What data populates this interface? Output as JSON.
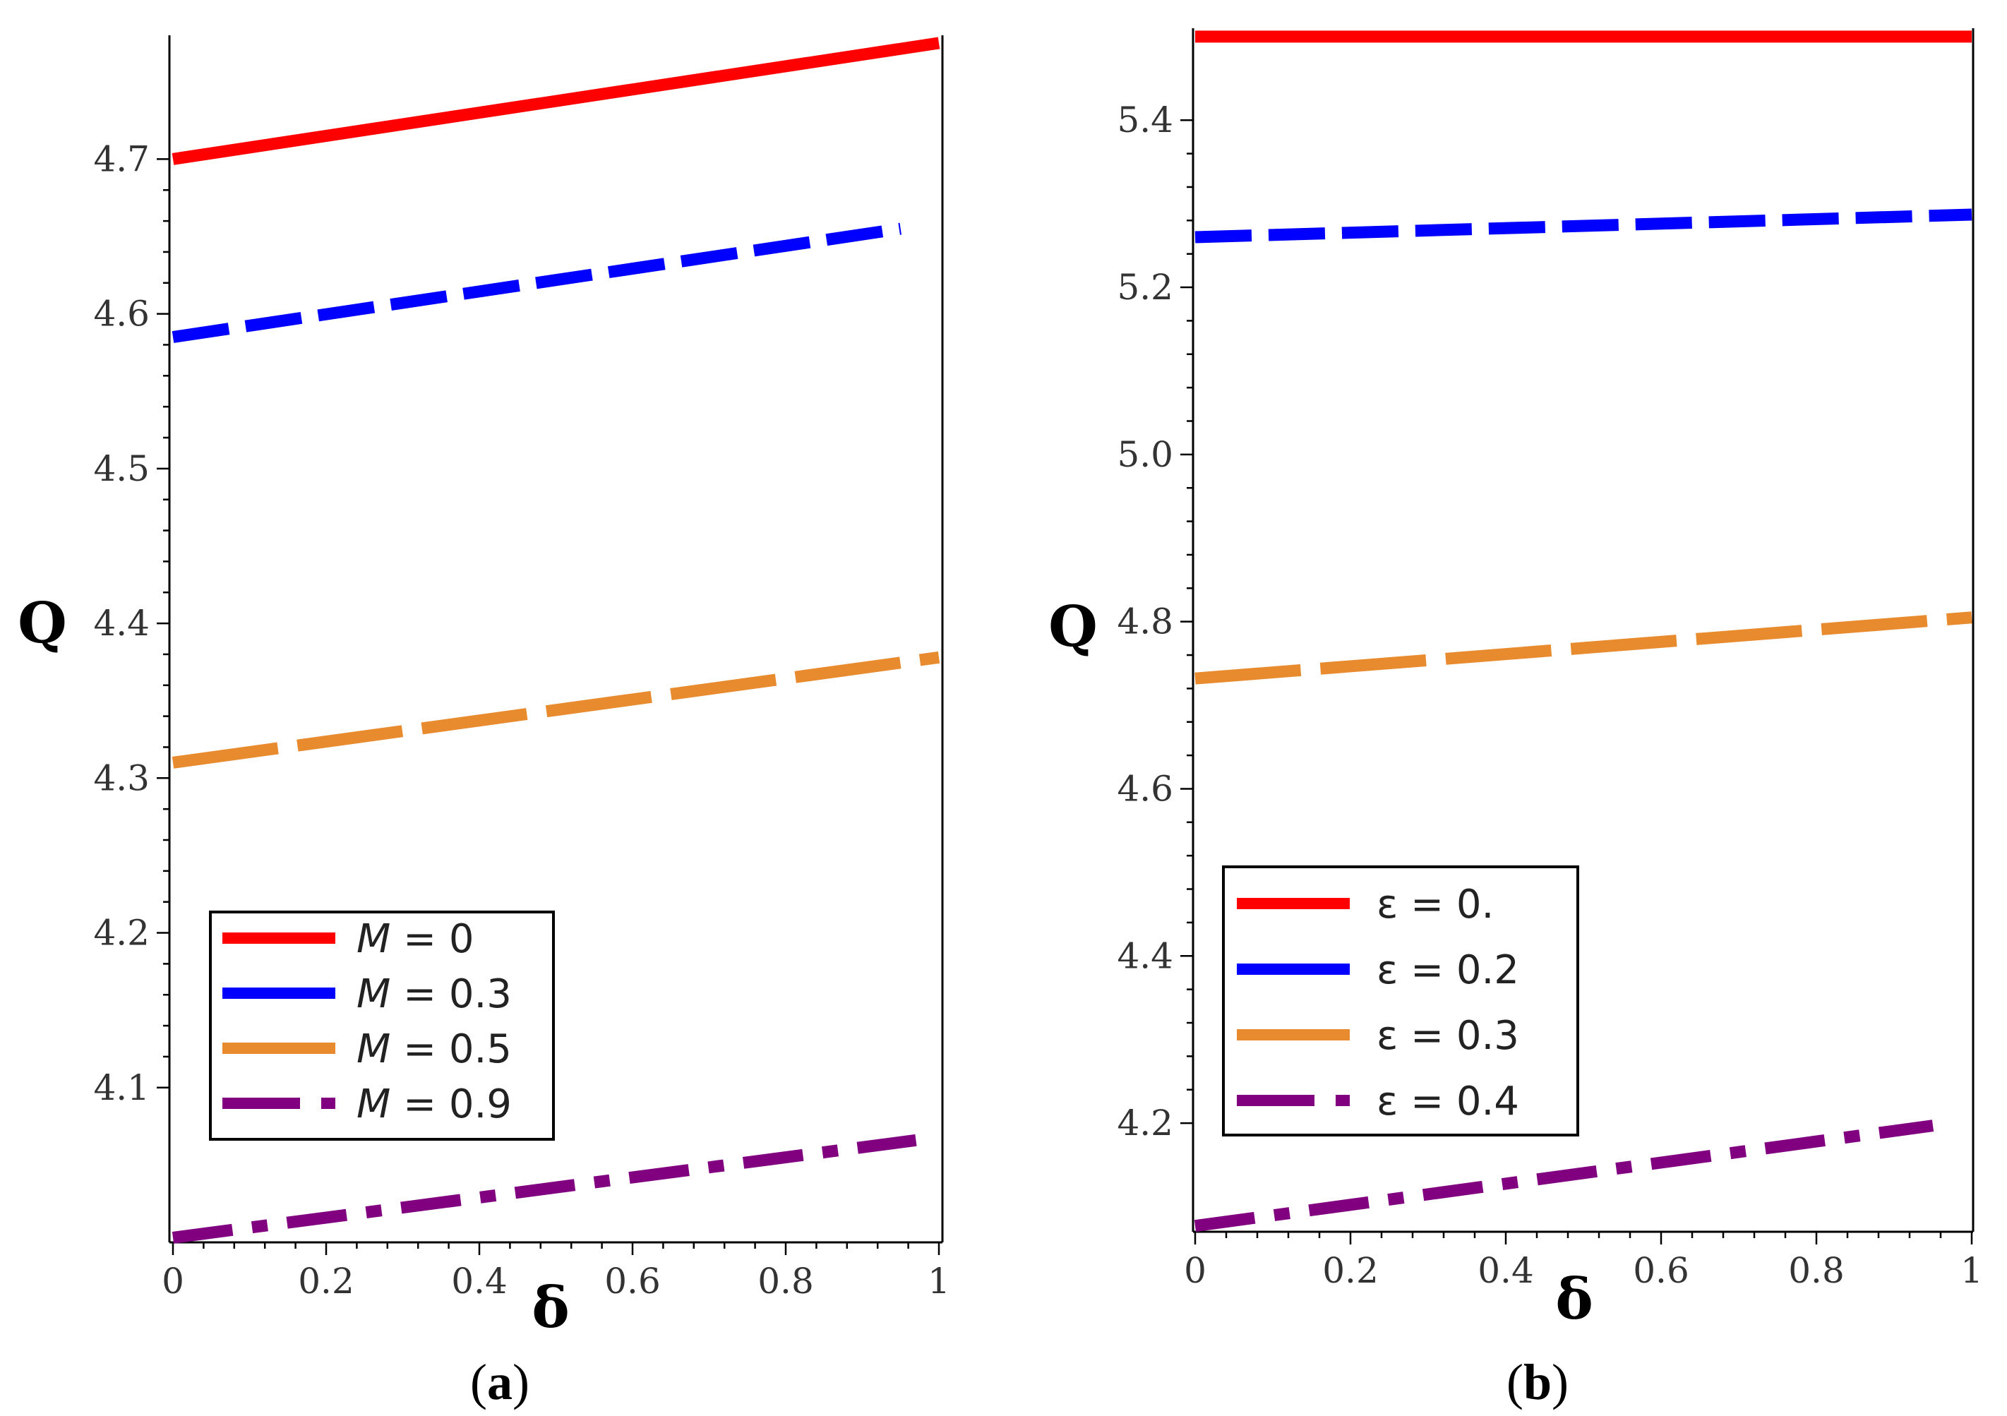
{
  "chart_data": [
    {
      "type": "line",
      "panel": "(a)",
      "xlabel": "δ",
      "ylabel": "Q",
      "xlim": [
        0,
        1
      ],
      "ylim": [
        4.0,
        4.78
      ],
      "xticks": [
        0,
        0.2,
        0.4,
        0.6,
        0.8,
        1
      ],
      "xtick_labels": [
        "0",
        "0.2",
        "0.4",
        "0.6",
        "0.8",
        "1"
      ],
      "yticks": [
        4.1,
        4.2,
        4.3,
        4.4,
        4.5,
        4.6,
        4.7
      ],
      "ytick_labels": [
        "4.1",
        "4.2",
        "4.3",
        "4.4",
        "4.5",
        "4.6",
        "4.7"
      ],
      "legend_position": "bottom-left",
      "series": [
        {
          "name": "M = 0",
          "legend_symbol": "M",
          "legend_value": "= 0",
          "color": "#ff0000",
          "dash": "solid",
          "x": [
            0,
            1
          ],
          "y": [
            4.7,
            4.775
          ]
        },
        {
          "name": "M = 0.3",
          "legend_symbol": "M",
          "legend_value": "= 0.3",
          "color": "#0000ff",
          "dash": "dash",
          "x": [
            0,
            0.95
          ],
          "y": [
            4.585,
            4.655
          ]
        },
        {
          "name": "M = 0.5",
          "legend_symbol": "M",
          "legend_value": "= 0.5",
          "color": "#e88a2e",
          "dash": "longdash",
          "x": [
            0,
            1
          ],
          "y": [
            4.31,
            4.378
          ]
        },
        {
          "name": "M = 0.9",
          "legend_symbol": "M",
          "legend_value": "= 0.9",
          "color": "#800080",
          "dash": "dashdot",
          "x": [
            0,
            0.97
          ],
          "y": [
            4.003,
            4.066
          ]
        }
      ]
    },
    {
      "type": "line",
      "panel": "(b)",
      "xlabel": "δ",
      "ylabel": "Q",
      "xlim": [
        0,
        1
      ],
      "ylim": [
        4.07,
        5.51
      ],
      "xticks": [
        0,
        0.2,
        0.4,
        0.6,
        0.8,
        1
      ],
      "xtick_labels": [
        "0",
        "0.2",
        "0.4",
        "0.6",
        "0.8",
        "1"
      ],
      "yticks": [
        4.2,
        4.4,
        4.6,
        4.8,
        5.0,
        5.2,
        5.4
      ],
      "ytick_labels": [
        "4.2",
        "4.4",
        "4.6",
        "4.8",
        "5.0",
        "5.2",
        "5.4"
      ],
      "legend_position": "bottom-left",
      "series": [
        {
          "name": "ε = 0.",
          "legend_symbol": "ε",
          "legend_value": "= 0.",
          "color": "#ff0000",
          "dash": "solid",
          "x": [
            0,
            1
          ],
          "y": [
            5.5,
            5.5
          ]
        },
        {
          "name": "ε = 0.2",
          "legend_symbol": "ε",
          "legend_value": "= 0.2",
          "color": "#0000ff",
          "dash": "dash",
          "x": [
            0,
            1
          ],
          "y": [
            5.26,
            5.287
          ]
        },
        {
          "name": "ε = 0.3",
          "legend_symbol": "ε",
          "legend_value": "= 0.3",
          "color": "#e88a2e",
          "dash": "longdash",
          "x": [
            0,
            1
          ],
          "y": [
            4.732,
            4.805
          ]
        },
        {
          "name": "ε = 0.4",
          "legend_symbol": "ε",
          "legend_value": "= 0.4",
          "color": "#800080",
          "dash": "dashdot",
          "x": [
            0,
            0.95
          ],
          "y": [
            4.077,
            4.197
          ]
        }
      ]
    }
  ]
}
